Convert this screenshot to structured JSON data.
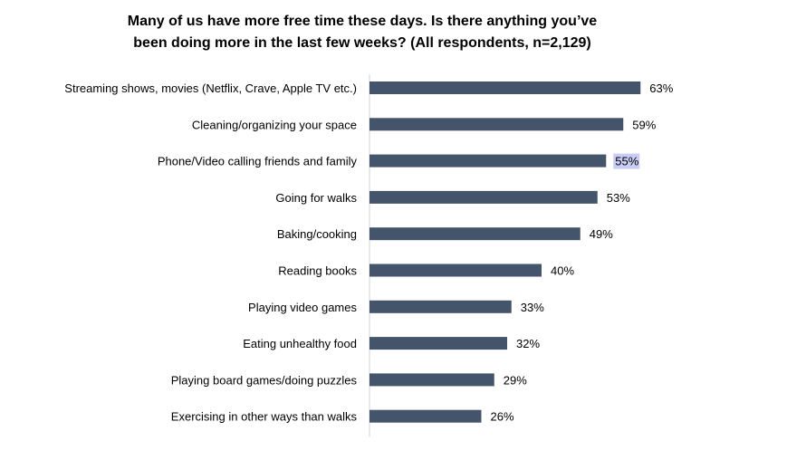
{
  "chart_data": {
    "type": "bar",
    "orientation": "horizontal",
    "title_line1": "Many of us have more free time these days. Is there anything you’ve",
    "title_line2": "been doing more in the last few weeks? (All respondents, n=2,129)",
    "categories": [
      "Streaming shows, movies (Netflix, Crave, Apple TV etc.)",
      "Cleaning/organizing your space",
      "Phone/Video calling friends and family",
      "Going for walks",
      "Baking/cooking",
      "Reading books",
      "Playing video games",
      "Eating unhealthy food",
      "Playing board games/doing puzzles",
      "Exercising in other ways than walks"
    ],
    "values": [
      63,
      59,
      55,
      53,
      49,
      40,
      33,
      32,
      29,
      26
    ],
    "value_labels": [
      "63%",
      "59%",
      "55%",
      "53%",
      "49%",
      "40%",
      "33%",
      "32%",
      "29%",
      "26%"
    ],
    "highlighted_label_index": 2,
    "xlim": [
      0,
      100
    ],
    "grid": false,
    "legend": "none",
    "colors": {
      "bar": "#44546a",
      "axis": "#d0d0d0",
      "text": "#000000",
      "highlight": "#c9cdf5"
    }
  }
}
